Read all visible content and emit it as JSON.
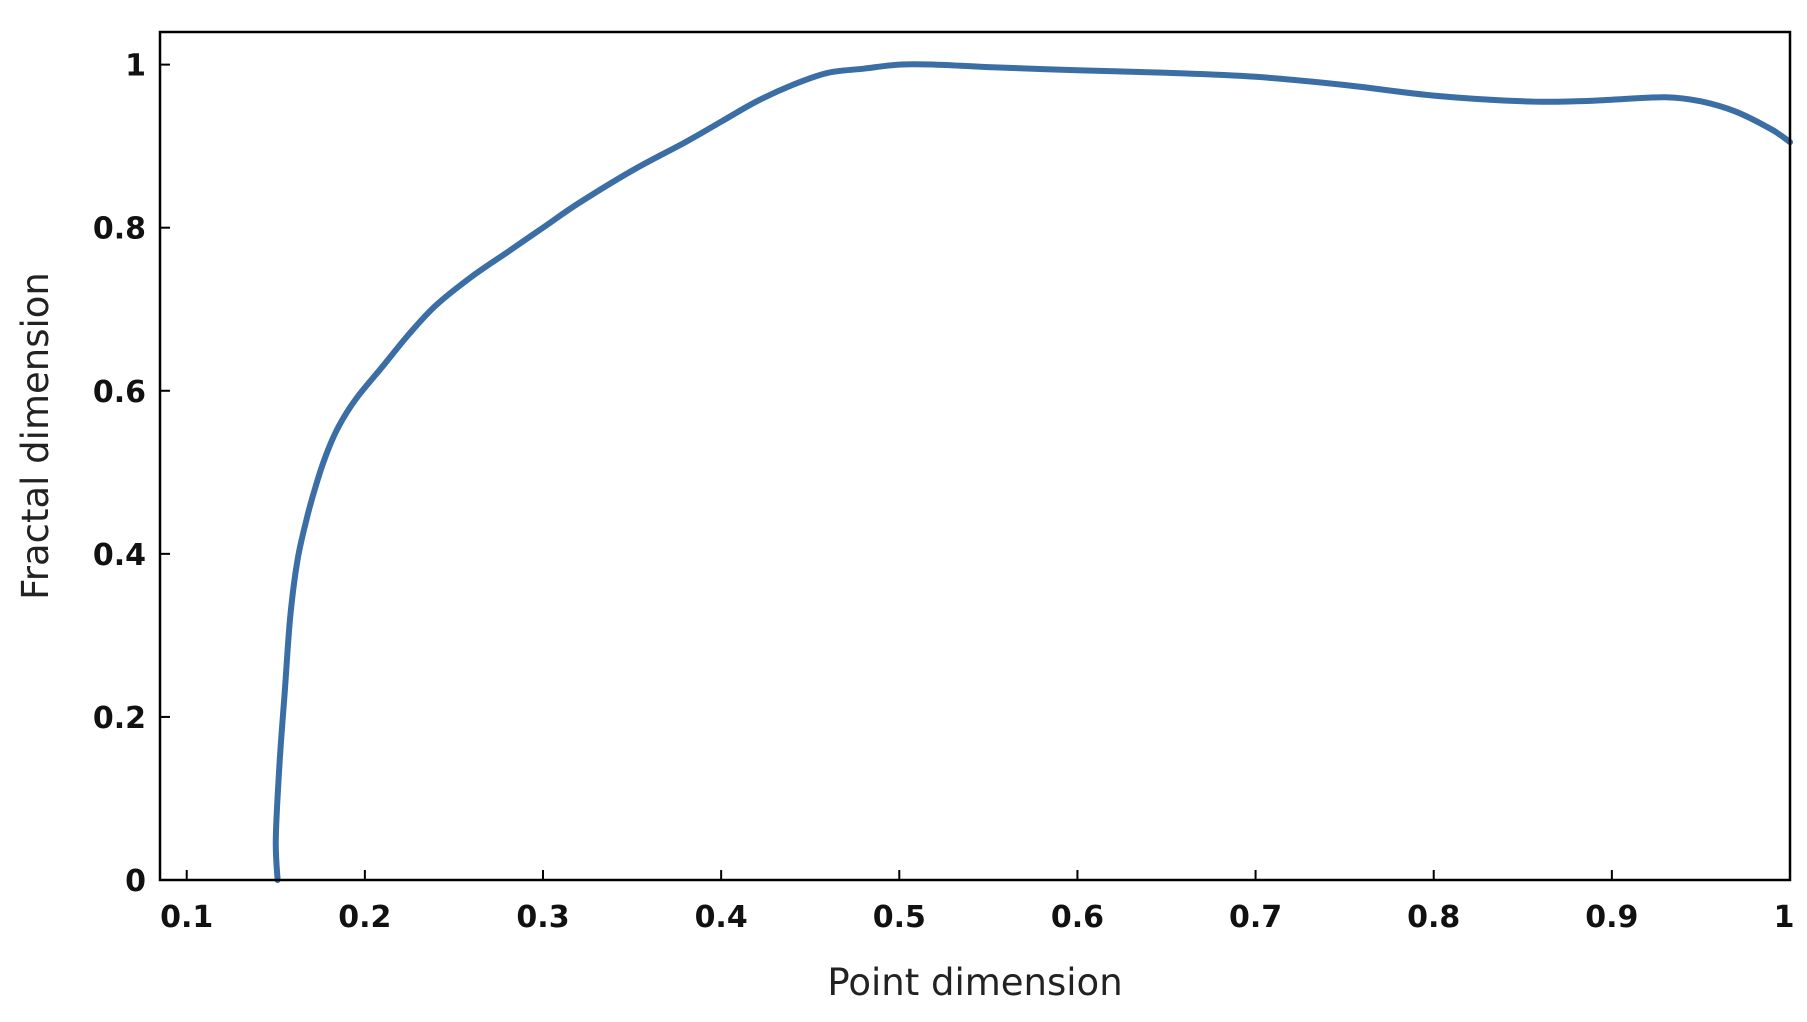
{
  "chart_data": {
    "type": "line",
    "title": "",
    "xlabel": "Point dimension",
    "ylabel": "Fractal dimension",
    "xlim": [
      0.085,
      1.0
    ],
    "ylim": [
      0,
      1.04
    ],
    "grid": false,
    "legend": "none",
    "x_ticks": [
      0.1,
      0.2,
      0.3,
      0.4,
      0.5,
      0.6,
      0.7,
      0.8,
      0.9,
      1.0
    ],
    "x_tick_labels": [
      "0.1",
      "0.2",
      "0.3",
      "0.4",
      "0.5",
      "0.6",
      "0.7",
      "0.8",
      "0.9",
      "1"
    ],
    "y_ticks": [
      0,
      0.2,
      0.4,
      0.6,
      0.8,
      1.0
    ],
    "y_tick_labels": [
      "0",
      "0.2",
      "0.4",
      "0.6",
      "0.8",
      "1"
    ],
    "series": [
      {
        "color": "#3b6ea5",
        "x": [
          0.151,
          0.15,
          0.152,
          0.155,
          0.158,
          0.162,
          0.167,
          0.172,
          0.178,
          0.185,
          0.195,
          0.21,
          0.225,
          0.24,
          0.26,
          0.28,
          0.3,
          0.32,
          0.35,
          0.38,
          0.4,
          0.42,
          0.44,
          0.46,
          0.48,
          0.5,
          0.52,
          0.55,
          0.6,
          0.65,
          0.7,
          0.75,
          0.8,
          0.85,
          0.88,
          0.9,
          0.93,
          0.95,
          0.97,
          0.99,
          1.0
        ],
        "y": [
          0.0,
          0.05,
          0.14,
          0.23,
          0.32,
          0.39,
          0.44,
          0.48,
          0.52,
          0.555,
          0.59,
          0.63,
          0.67,
          0.705,
          0.74,
          0.77,
          0.8,
          0.83,
          0.87,
          0.905,
          0.93,
          0.955,
          0.975,
          0.99,
          0.995,
          1.0,
          1.0,
          0.997,
          0.993,
          0.99,
          0.985,
          0.975,
          0.962,
          0.955,
          0.955,
          0.957,
          0.96,
          0.955,
          0.942,
          0.92,
          0.905
        ]
      }
    ]
  }
}
